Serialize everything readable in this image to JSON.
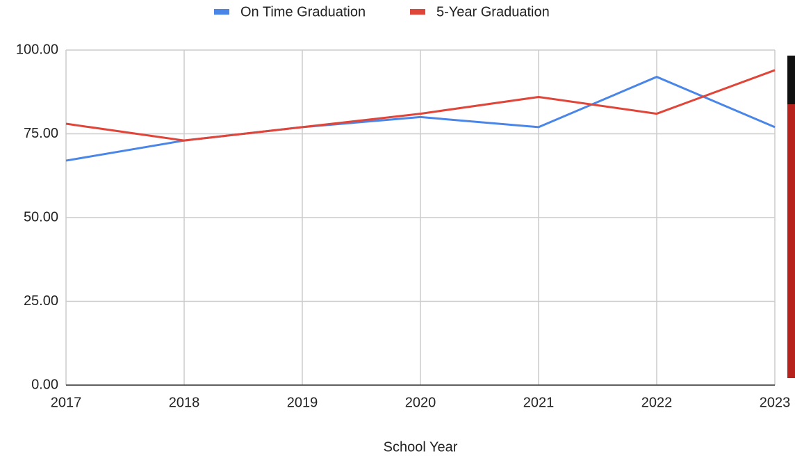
{
  "chart_data": {
    "type": "line",
    "x_label": "School Year",
    "x": [
      2017,
      2018,
      2019,
      2020,
      2021,
      2022,
      2023
    ],
    "xlim": [
      2017,
      2023
    ],
    "xticks": [
      2017,
      2018,
      2019,
      2020,
      2021,
      2022,
      2023
    ],
    "ylim": [
      0,
      100
    ],
    "yticks": [
      {
        "value": 0,
        "label": "0.00"
      },
      {
        "value": 25,
        "label": "25.00"
      },
      {
        "value": 50,
        "label": "50.00"
      },
      {
        "value": 75,
        "label": "75.00"
      },
      {
        "value": 100,
        "label": "100.00"
      }
    ],
    "grid": true,
    "legend": "top",
    "series": [
      {
        "name": "On Time Graduation",
        "color": "#4a86e8",
        "values": [
          67,
          73,
          77,
          80,
          77,
          92,
          77
        ]
      },
      {
        "name": "5-Year Graduation",
        "color": "#e0453a",
        "values": [
          78,
          73,
          77,
          81,
          86,
          81,
          94
        ]
      }
    ]
  }
}
